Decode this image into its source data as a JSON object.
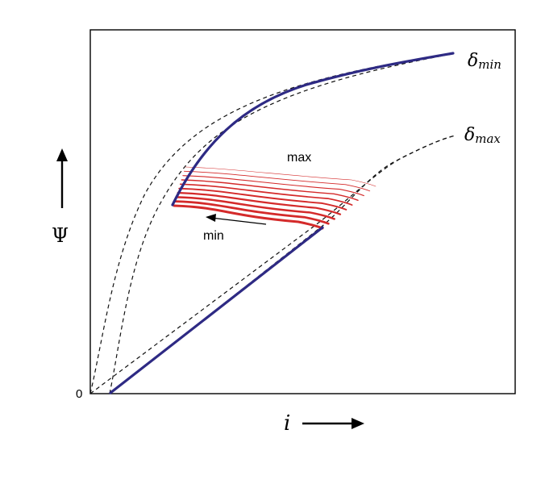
{
  "axes": {
    "y_label": "Ψ",
    "x_label": "i",
    "origin_label": "0"
  },
  "curves": {
    "delta_min": {
      "symbol": "δ",
      "subscript": "min"
    },
    "delta_max": {
      "symbol": "δ",
      "subscript": "max"
    }
  },
  "annotations": {
    "max_label": "max",
    "min_label": "min"
  },
  "colors": {
    "blue": "#2e2a84",
    "red": "#d42a2a",
    "dashed": "#111111",
    "frame": "#000000"
  },
  "loop_count": 10
}
